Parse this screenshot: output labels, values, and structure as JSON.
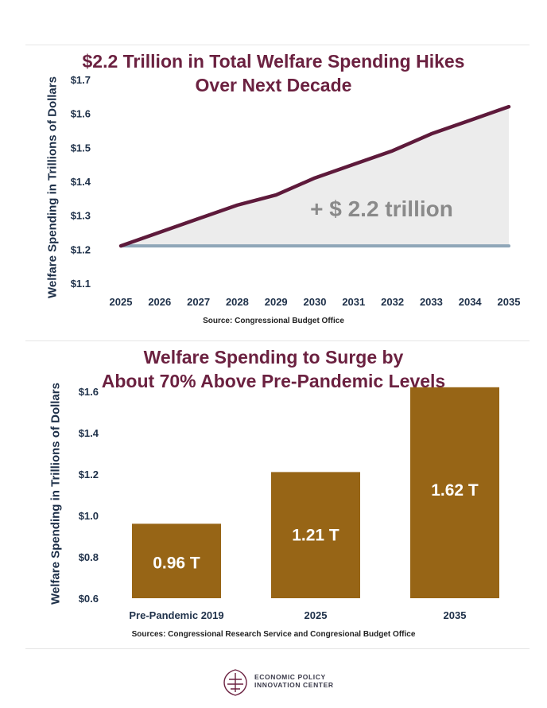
{
  "charts": {
    "top": {
      "title_line1": "$2.2 Trillion in Total Welfare Spending Hikes",
      "title_line2": "Over Next Decade",
      "ylabel": "Welfare Spending in Trillions of Dollars",
      "source": "Source: Congressional Budget Office",
      "annotation": "+ $ 2.2 trillion"
    },
    "bottom": {
      "title_line1": "Welfare Spending to Surge by",
      "title_line2": "About 70% Above Pre-Pandemic Levels",
      "ylabel": "Welfare Spending in Trillions of Dollars",
      "source": "Sources: Congressional Research Service and Congresional Budget Office"
    }
  },
  "logo": {
    "line1": "ECONOMIC POLICY",
    "line2": "INNOVATION CENTER"
  },
  "colors": {
    "title": "#6b2140",
    "line_series": "#5e1a3b",
    "baseline": "#8fa6b8",
    "fill": "#ececec",
    "bar": "#976516",
    "bar_label": "#ffffff",
    "tick": "#1e3049"
  },
  "chart_data": [
    {
      "type": "area",
      "title": "$2.2 Trillion in Total Welfare Spending Hikes Over Next Decade",
      "ylabel": "Welfare Spending in Trillions of Dollars",
      "xlabel": "",
      "x": [
        "2025",
        "2026",
        "2027",
        "2028",
        "2029",
        "2030",
        "2031",
        "2032",
        "2033",
        "2034",
        "2035"
      ],
      "series": [
        {
          "values": [
            1.21,
            1.25,
            1.29,
            1.33,
            1.36,
            1.41,
            1.45,
            1.49,
            1.54,
            1.58,
            1.62
          ]
        },
        {
          "values": [
            1.21,
            1.21,
            1.21,
            1.21,
            1.21,
            1.21,
            1.21,
            1.21,
            1.21,
            1.21,
            1.21
          ]
        }
      ],
      "ylim": [
        1.1,
        1.7
      ],
      "yticks": [
        "$1.1",
        "$1.2",
        "$1.3",
        "$1.4",
        "$1.5",
        "$1.6",
        "$1.7"
      ],
      "yticks_values": [
        1.1,
        1.2,
        1.3,
        1.4,
        1.5,
        1.6,
        1.7
      ],
      "annotations": [
        "+ $ 2.2 trillion"
      ],
      "grid": false,
      "legend": "none"
    },
    {
      "type": "bar",
      "title": "Welfare Spending to Surge by About 70% Above Pre-Pandemic Levels",
      "ylabel": "Welfare Spending in Trillions of Dollars",
      "xlabel": "",
      "categories": [
        "Pre-Pandemic 2019",
        "2025",
        "2035"
      ],
      "values": [
        0.96,
        1.21,
        1.62
      ],
      "data_labels": [
        "0.96 T",
        "1.21 T",
        "1.62 T"
      ],
      "ylim": [
        0.6,
        1.6
      ],
      "yticks": [
        "$0.6",
        "$0.8",
        "$1.0",
        "$1.2",
        "$1.4",
        "$1.6"
      ],
      "yticks_values": [
        0.6,
        0.8,
        1.0,
        1.2,
        1.4,
        1.6
      ],
      "grid": false,
      "legend": "none"
    }
  ]
}
